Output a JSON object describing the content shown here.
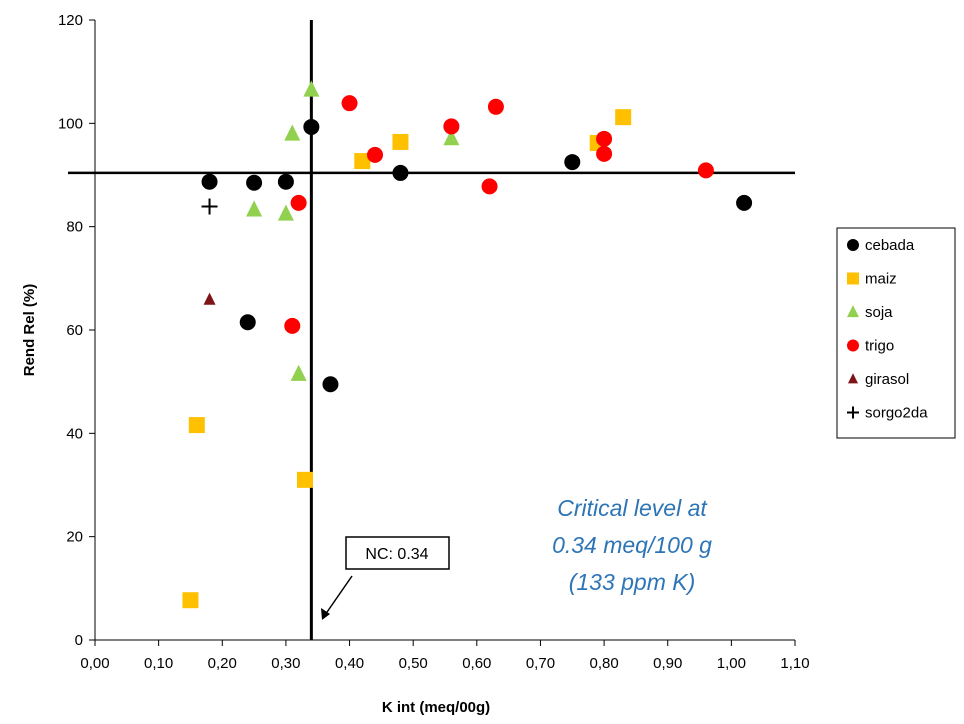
{
  "chart_data": {
    "type": "scatter",
    "xlabel": "K int (meq/00g)",
    "ylabel": "Rend Rel (%)",
    "xlim": [
      0,
      1.1
    ],
    "ylim": [
      0,
      120
    ],
    "x_ticks": [
      "0,00",
      "0,10",
      "0,20",
      "0,30",
      "0,40",
      "0,50",
      "0,60",
      "0,70",
      "0,80",
      "0,90",
      "1,00",
      "1,10"
    ],
    "y_ticks": [
      "0",
      "20",
      "40",
      "60",
      "80",
      "100",
      "120"
    ],
    "grid": false,
    "legend_position": "right",
    "series": [
      {
        "name": "cebada",
        "marker": "circle",
        "color": "#000000",
        "points": [
          [
            0.18,
            88.7
          ],
          [
            0.25,
            88.5
          ],
          [
            0.3,
            88.7
          ],
          [
            0.34,
            99.3
          ],
          [
            0.48,
            90.4
          ],
          [
            0.75,
            92.5
          ],
          [
            1.02,
            84.6
          ],
          [
            0.24,
            61.5
          ],
          [
            0.37,
            49.5
          ]
        ]
      },
      {
        "name": "maiz",
        "marker": "square",
        "color": "#ffc000",
        "points": [
          [
            0.42,
            92.7
          ],
          [
            0.48,
            96.4
          ],
          [
            0.79,
            96.2
          ],
          [
            0.83,
            101.2
          ],
          [
            0.16,
            41.6
          ],
          [
            0.33,
            31.0
          ],
          [
            0.15,
            7.7
          ]
        ]
      },
      {
        "name": "soja",
        "marker": "triangle",
        "color": "#92d050",
        "points": [
          [
            0.34,
            106.5
          ],
          [
            0.31,
            98.0
          ],
          [
            0.25,
            83.3
          ],
          [
            0.3,
            82.5
          ],
          [
            0.56,
            97.1
          ],
          [
            0.32,
            51.5
          ]
        ]
      },
      {
        "name": "trigo",
        "marker": "circle",
        "color": "#ff0000",
        "points": [
          [
            0.4,
            103.9
          ],
          [
            0.44,
            93.9
          ],
          [
            0.56,
            99.4
          ],
          [
            0.63,
            103.2
          ],
          [
            0.62,
            87.8
          ],
          [
            0.8,
            97.0
          ],
          [
            0.8,
            94.1
          ],
          [
            0.96,
            90.9
          ],
          [
            0.32,
            84.6
          ],
          [
            0.31,
            60.8
          ]
        ]
      },
      {
        "name": "girasol",
        "marker": "triangle",
        "color": "#7f1416",
        "points": [
          [
            0.18,
            65.9
          ]
        ]
      },
      {
        "name": "sorgo2da",
        "marker": "plus",
        "color": "#000000",
        "points": [
          [
            0.18,
            83.9
          ]
        ]
      }
    ],
    "reference_lines": {
      "vertical_x": 0.34,
      "horizontal_y": 90.4
    },
    "annotations": {
      "nc_label": "NC: 0.34",
      "critical_note": [
        "Critical level at",
        "0.34 meq/100 g",
        "(133 ppm K)"
      ]
    }
  }
}
